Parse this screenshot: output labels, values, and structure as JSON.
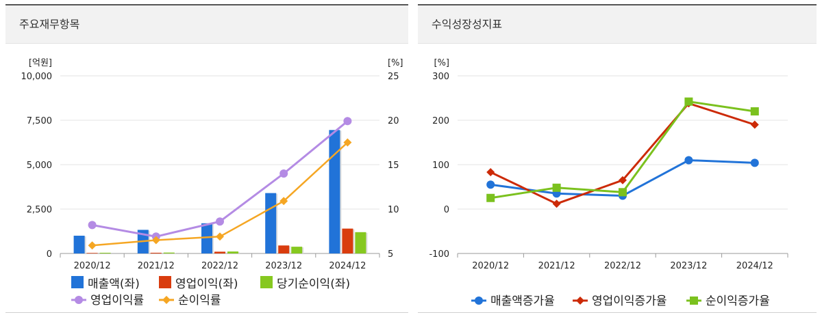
{
  "panels": {
    "left_title": "주요재무항목",
    "right_title": "수익성장성지표"
  },
  "colors": {
    "revenue": "#2173d8",
    "op_income": "#d93c0e",
    "net_income": "#86c820",
    "op_margin": "#b48be4",
    "net_margin": "#f5a623",
    "rev_growth": "#2173d8",
    "op_growth": "#cc2a07",
    "net_growth": "#7bc11e"
  },
  "chart_data": [
    {
      "type": "bar",
      "categories": [
        "2020/12",
        "2021/12",
        "2022/12",
        "2023/12",
        "2024/12"
      ],
      "left_axis": {
        "unit": "[억원]",
        "ylim": [
          0,
          10000
        ],
        "ticks": [
          "0",
          "2,500",
          "5,000",
          "7,500",
          "10,000"
        ],
        "tick_values": [
          0,
          2500,
          5000,
          7500,
          10000
        ]
      },
      "right_axis": {
        "unit": "[%]",
        "ylim": [
          5,
          25
        ],
        "ticks": [
          "5",
          "10",
          "15",
          "20",
          "25"
        ],
        "tick_values": [
          5,
          10,
          15,
          20,
          25
        ]
      },
      "bar_series": [
        {
          "name": "매출액(좌)",
          "values": [
            1000,
            1330,
            1700,
            3400,
            6950
          ]
        },
        {
          "name": "영업이익(좌)",
          "values": [
            30,
            40,
            100,
            450,
            1400
          ]
        },
        {
          "name": "당기순이익(좌)",
          "values": [
            40,
            50,
            110,
            380,
            1200
          ]
        }
      ],
      "line_series": [
        {
          "name": "영업이익률",
          "values": [
            8.2,
            6.9,
            8.6,
            14.0,
            19.9
          ]
        },
        {
          "name": "순이익률",
          "values": [
            5.9,
            6.5,
            6.9,
            10.9,
            17.5
          ]
        }
      ],
      "grid": true,
      "legend": "bottom"
    },
    {
      "type": "line",
      "categories": [
        "2020/12",
        "2021/12",
        "2022/12",
        "2023/12",
        "2024/12"
      ],
      "axis": {
        "unit": "[%]",
        "ylim": [
          -100,
          300
        ],
        "ticks": [
          "-100",
          "0",
          "100",
          "200",
          "300"
        ],
        "tick_values": [
          -100,
          0,
          100,
          200,
          300
        ]
      },
      "series": [
        {
          "name": "매출액증가율",
          "values": [
            55,
            35,
            30,
            110,
            104
          ]
        },
        {
          "name": "영업이익증가율",
          "values": [
            83,
            12,
            65,
            238,
            190
          ]
        },
        {
          "name": "순이익증가율",
          "values": [
            25,
            48,
            38,
            242,
            220
          ]
        }
      ],
      "grid": true,
      "legend": "bottom"
    }
  ]
}
